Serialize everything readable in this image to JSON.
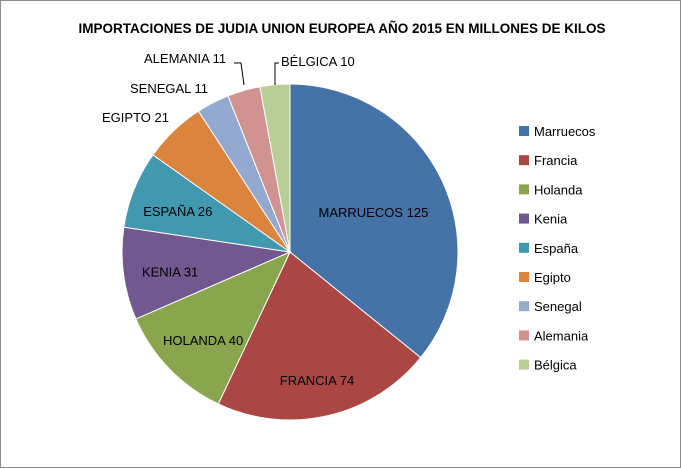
{
  "chart_data": {
    "type": "pie",
    "title": "IMPORTACIONES DE JUDIA UNION EUROPEA AÑO 2015  EN MILLONES DE KILOS",
    "categories": [
      "Marruecos",
      "Francia",
      "Holanda",
      "Kenia",
      "España",
      "Egipto",
      "Senegal",
      "Alemania",
      "Bélgica"
    ],
    "values": [
      125,
      74,
      40,
      31,
      26,
      21,
      11,
      11,
      10
    ],
    "data_labels": [
      "MARRUECOS 125",
      "FRANCIA 74",
      "HOLANDA 40",
      "KENIA 31",
      "ESPAÑA 26",
      "EGIPTO 21",
      "SENEGAL 11",
      "ALEMANIA 11",
      "BÉLGICA 10"
    ],
    "colors": [
      "#4572a7",
      "#aa4643",
      "#89a54e",
      "#71588f",
      "#4198af",
      "#db843d",
      "#93a9cf",
      "#d19392",
      "#b9cd96"
    ],
    "legend": {
      "position": "right"
    }
  }
}
